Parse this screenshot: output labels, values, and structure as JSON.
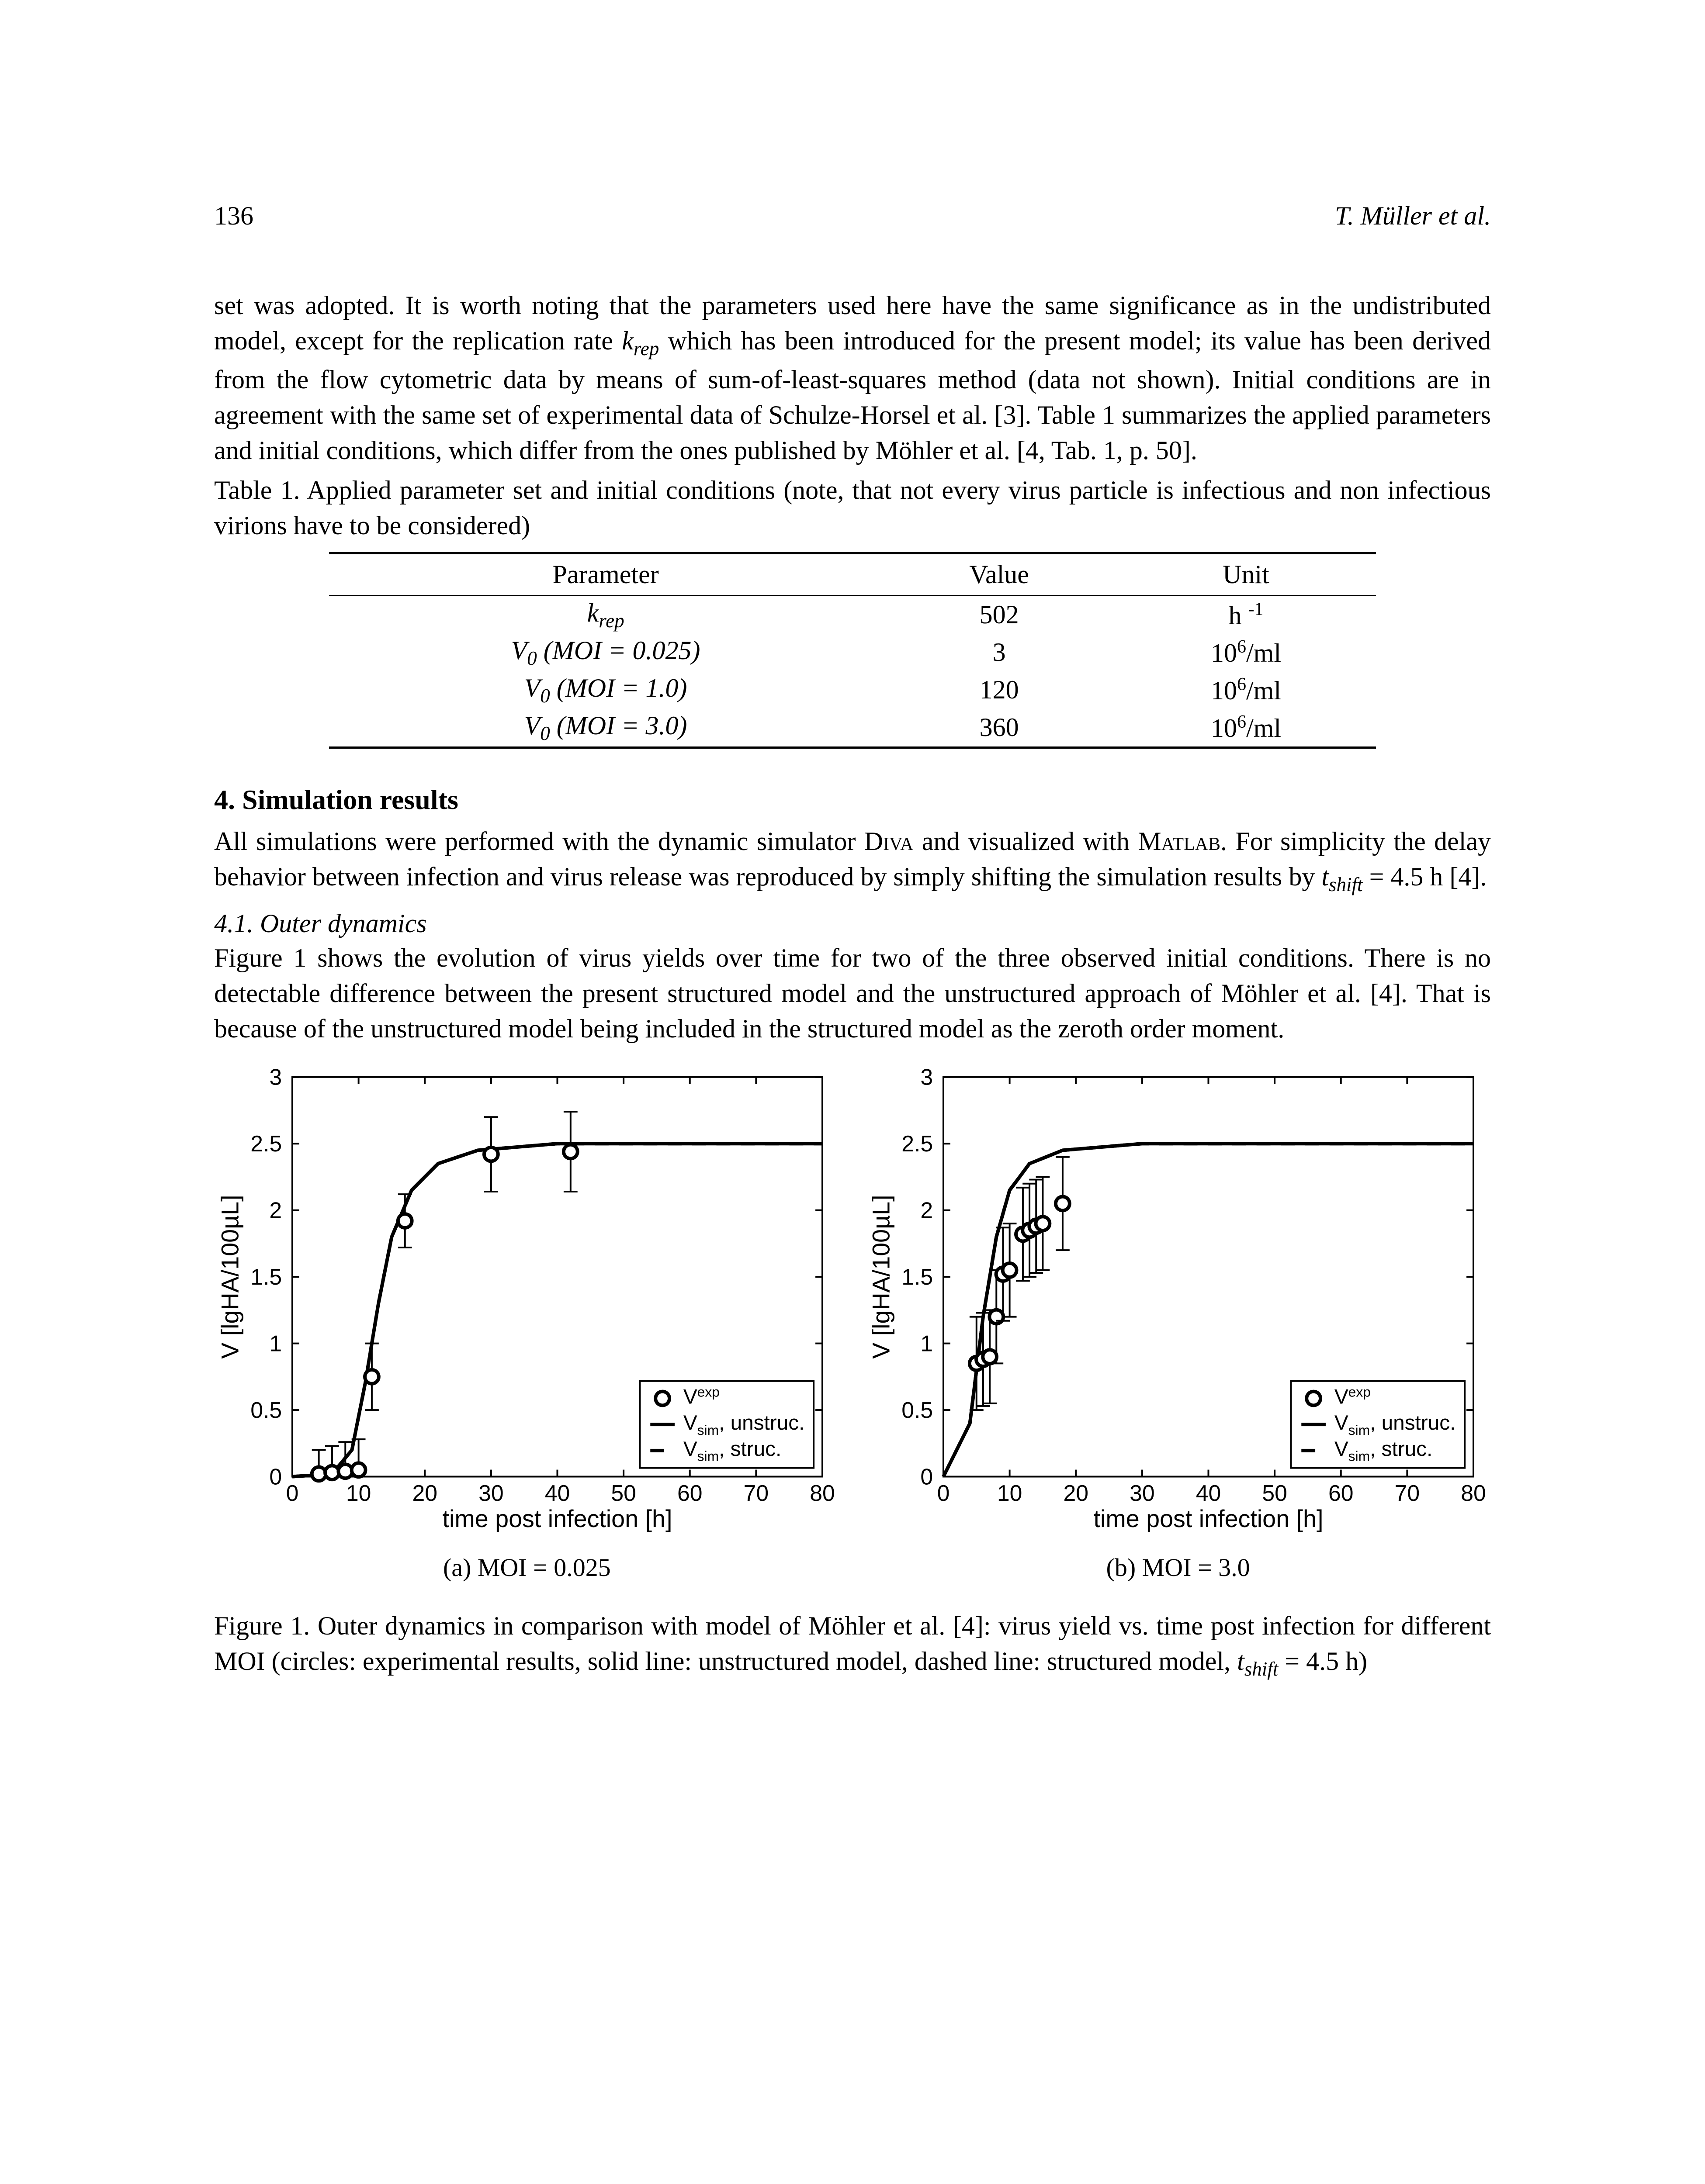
{
  "header": {
    "page_number": "136",
    "running_head": "T. Müller et al."
  },
  "para1": {
    "t1": "set was adopted. It is worth noting that the parameters used here have the same significance as in the undistributed model, except for the replication rate ",
    "krep": "k",
    "krep_sub": "rep",
    "t2": " which has been introduced for the present model; its value has been derived from the flow cytometric data by means of sum-of-least-squares method (data not shown). Initial conditions are in agreement with the same set of experimental data of Schulze-Horsel et al. [3]. Table 1 summarizes the applied parameters and initial conditions, which differ from the ones published by Möhler et al. [4, Tab. 1, p. 50]."
  },
  "table_caption": "Table 1. Applied parameter set and initial conditions (note, that not every virus particle is infectious and non infectious virions have to be considered)",
  "table": {
    "columns": [
      "Parameter",
      "Value",
      "Unit"
    ],
    "rows": [
      {
        "param_html": "<span class='italic'>k<span class='sub'>rep</span></span>",
        "value": "502",
        "unit_html": "h <span class='sup'>-1</span>"
      },
      {
        "param_html": "<span class='italic'>V<span class='sub'>0</span> (MOI = 0.025)</span>",
        "value": "3",
        "unit_html": "10<span class='sup'>6</span>/ml"
      },
      {
        "param_html": "<span class='italic'>V<span class='sub'>0</span> (MOI = 1.0)</span>",
        "value": "120",
        "unit_html": "10<span class='sup'>6</span>/ml"
      },
      {
        "param_html": "<span class='italic'>V<span class='sub'>0</span> (MOI = 3.0)</span>",
        "value": "360",
        "unit_html": "10<span class='sup'>6</span>/ml"
      }
    ]
  },
  "section4_title": "4. Simulation results",
  "para2": {
    "t1": "All simulations were performed with the dynamic simulator ",
    "diva": "Diva",
    "t2": " and visualized with ",
    "matlab": "Matlab",
    "t3": ". For simplicity the delay behavior between infection and virus release was reproduced by simply shifting the simulation results by ",
    "tshift": "t",
    "tshift_sub": "shift",
    "t4": " = 4.5 h [4]."
  },
  "subsection41": "4.1. Outer dynamics",
  "para3": "Figure 1 shows the evolution of virus yields over time for two of the three observed initial conditions. There is no detectable difference between the present structured model and the unstructured approach of Möhler et al. [4]. That is because of the unstructured model being included in the structured model as the zeroth order moment.",
  "charts": {
    "common": {
      "xlabel": "time post infection [h]",
      "ylabel": "V [lgHA/100µL]",
      "xlim": [
        0,
        80
      ],
      "xtick_step": 10,
      "ylim": [
        0,
        3
      ],
      "ytick_step": 0.5,
      "background_color": "#ffffff",
      "axis_color": "#000000",
      "curve_color": "#000000",
      "legend": {
        "items": [
          {
            "marker": "circle",
            "label": "V",
            "sup": "exp"
          },
          {
            "line": "solid",
            "label": "V",
            "sub": "sim",
            "after": ", unstruc."
          },
          {
            "line": "dashed",
            "label": "V",
            "sub": "sim",
            "after": ", struc."
          }
        ],
        "position": "lower right"
      },
      "marker_radius": 8,
      "line_width": 4
    },
    "a": {
      "caption": "(a) MOI = 0.025",
      "exp_points": [
        {
          "x": 4,
          "y": 0.02,
          "err": 0.18
        },
        {
          "x": 6,
          "y": 0.03,
          "err": 0.2
        },
        {
          "x": 8,
          "y": 0.04,
          "err": 0.22
        },
        {
          "x": 10,
          "y": 0.05,
          "err": 0.23
        },
        {
          "x": 12,
          "y": 0.75,
          "err": 0.25
        },
        {
          "x": 17,
          "y": 1.92,
          "err": 0.2
        },
        {
          "x": 30,
          "y": 2.42,
          "err": 0.28
        },
        {
          "x": 42,
          "y": 2.44,
          "err": 0.3
        }
      ],
      "curve": [
        {
          "x": 0,
          "y": 0
        },
        {
          "x": 6,
          "y": 0.02
        },
        {
          "x": 9,
          "y": 0.2
        },
        {
          "x": 11,
          "y": 0.7
        },
        {
          "x": 13,
          "y": 1.3
        },
        {
          "x": 15,
          "y": 1.8
        },
        {
          "x": 18,
          "y": 2.15
        },
        {
          "x": 22,
          "y": 2.35
        },
        {
          "x": 28,
          "y": 2.45
        },
        {
          "x": 40,
          "y": 2.5
        },
        {
          "x": 60,
          "y": 2.5
        },
        {
          "x": 80,
          "y": 2.5
        }
      ]
    },
    "b": {
      "caption": "(b) MOI = 3.0",
      "exp_points": [
        {
          "x": 5,
          "y": 0.85,
          "err": 0.35
        },
        {
          "x": 6,
          "y": 0.88,
          "err": 0.35
        },
        {
          "x": 7,
          "y": 0.9,
          "err": 0.35
        },
        {
          "x": 8,
          "y": 1.2,
          "err": 0.35
        },
        {
          "x": 9,
          "y": 1.52,
          "err": 0.35
        },
        {
          "x": 10,
          "y": 1.55,
          "err": 0.35
        },
        {
          "x": 12,
          "y": 1.82,
          "err": 0.35
        },
        {
          "x": 13,
          "y": 1.85,
          "err": 0.35
        },
        {
          "x": 14,
          "y": 1.88,
          "err": 0.35
        },
        {
          "x": 15,
          "y": 1.9,
          "err": 0.35
        },
        {
          "x": 18,
          "y": 2.05,
          "err": 0.35
        }
      ],
      "curve": [
        {
          "x": 0,
          "y": 0
        },
        {
          "x": 4,
          "y": 0.4
        },
        {
          "x": 5,
          "y": 0.8
        },
        {
          "x": 6,
          "y": 1.2
        },
        {
          "x": 8,
          "y": 1.8
        },
        {
          "x": 10,
          "y": 2.15
        },
        {
          "x": 13,
          "y": 2.35
        },
        {
          "x": 18,
          "y": 2.45
        },
        {
          "x": 30,
          "y": 2.5
        },
        {
          "x": 50,
          "y": 2.5
        },
        {
          "x": 80,
          "y": 2.5
        }
      ]
    }
  },
  "fig_caption": {
    "t1": "Figure 1. Outer dynamics in comparison with model of Möhler et al. [4]: virus yield vs. time post infection for different MOI (circles: experimental results, solid line: unstructured model, dashed line: structured model, ",
    "tshift": "t",
    "tshift_sub": "shift",
    "t2": " = 4.5 h)"
  }
}
